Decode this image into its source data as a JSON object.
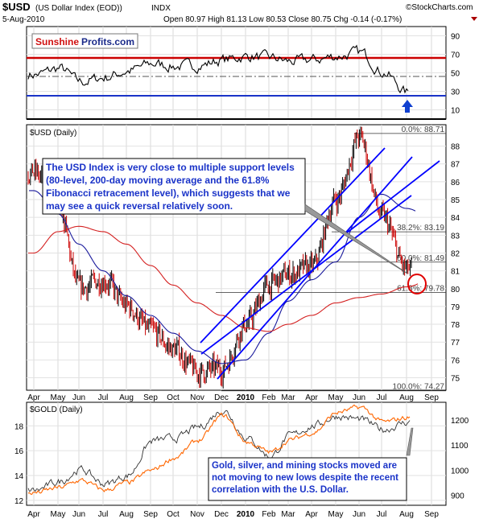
{
  "header": {
    "symbol": "$USD",
    "name": "(US Dollar Index (EOD))",
    "exchange": "INDX",
    "date": "5-Aug-2010",
    "ohlc": "Open 80.97  High 81.13  Low 80.53  Close 80.75  Chg -0.14 (-0.17%)",
    "watermark": "©StockCharts.com",
    "logo_red": "Sunshine",
    "logo_blue": "Profits.com"
  },
  "colors": {
    "annotation": "#1a33c8",
    "up": "#000000",
    "down": "#cc0000",
    "ma50": "#1a1a9c",
    "ma200": "#d42020",
    "gold": "#ff6600",
    "channel": "#0000ff",
    "rsi_upper": "#cc0000",
    "rsi_lower": "#1a33c8"
  },
  "chart_data": [
    {
      "type": "line",
      "title": "",
      "axis_ticks": [
        90,
        70,
        50,
        30,
        10
      ],
      "ylim": [
        0,
        100
      ],
      "reference_lines": [
        70,
        50,
        30
      ],
      "x": [
        "Apr",
        "May",
        "Jun",
        "Jul",
        "Aug",
        "Sep",
        "Oct",
        "Nov",
        "Dec",
        "2010",
        "Feb",
        "Mar",
        "Apr",
        "May",
        "Jun",
        "Jul",
        "Aug"
      ],
      "series": [
        {
          "values": [
            48,
            55,
            40,
            45,
            52,
            60,
            57,
            58,
            64,
            68,
            66,
            62,
            64,
            68,
            72,
            50,
            28
          ]
        }
      ]
    },
    {
      "type": "line",
      "label": "$USD (Daily)",
      "x": [
        "Apr",
        "May",
        "Jun",
        "Jul",
        "Aug",
        "Sep",
        "Oct",
        "Nov",
        "Dec",
        "2010",
        "Feb",
        "Mar",
        "Apr",
        "May",
        "Jun",
        "Jul",
        "Aug",
        "Sep"
      ],
      "y_ticks": [
        75,
        76,
        77,
        78,
        79,
        80,
        81,
        82,
        83,
        84,
        85,
        86,
        87,
        88
      ],
      "ylim": [
        74.3,
        89.2
      ],
      "series": [
        {
          "name": "",
          "values": [
            86.5,
            84.5,
            80.0,
            80.5,
            79.0,
            77.6,
            76.6,
            75.3,
            75.5,
            78.0,
            80.2,
            80.8,
            81.2,
            85.0,
            88.5,
            84.0,
            81.0,
            80.75
          ]
        },
        {
          "name": "",
          "values": [
            85.5,
            84.2,
            82.5,
            81.0,
            79.6,
            78.5,
            77.5,
            76.5,
            75.8,
            76.0,
            77.5,
            79.3,
            80.5,
            81.5,
            84.0,
            85.3,
            84.5,
            84.0
          ]
        },
        {
          "name": "",
          "values": [
            82.0,
            83.2,
            83.5,
            83.2,
            82.5,
            81.3,
            80.2,
            79.2,
            78.5,
            77.8,
            77.6,
            78.0,
            78.5,
            79.2,
            79.5,
            79.7,
            80.1,
            80.5
          ]
        }
      ],
      "fibonacci": [
        {
          "label": "0.0%: 88.71",
          "value": 88.71
        },
        {
          "label": "38.2%: 83.19",
          "value": 83.19
        },
        {
          "label": "50.0%: 81.49",
          "value": 81.49
        },
        {
          "label": "61.8%: 79.78",
          "value": 79.78
        },
        {
          "label": "100.0%: 74.27",
          "value": 74.27
        }
      ],
      "annotation": "The USD Index is very close to multiple support levels (80-level, 200-day moving average and the 61.8% Fibonacci retracement level), which suggests that we may see a quick reversal relatively soon."
    },
    {
      "type": "line",
      "label": "$GOLD (Daily)",
      "x": [
        "Apr",
        "May",
        "Jun",
        "Jul",
        "Aug",
        "Sep",
        "Oct",
        "Nov",
        "Dec",
        "2010",
        "Feb",
        "Mar",
        "Apr",
        "May",
        "Jun",
        "Jul",
        "Aug",
        "Sep"
      ],
      "left_ticks": [
        12,
        14,
        16,
        18
      ],
      "right_ticks": [
        900,
        1000,
        1100,
        1200
      ],
      "series": [
        {
          "name": "",
          "axis": "left",
          "values": [
            12.8,
            13.5,
            14.5,
            13.3,
            14.0,
            16.8,
            17.0,
            17.9,
            19.3,
            17.0,
            15.5,
            17.2,
            18.0,
            18.8,
            18.5,
            17.7,
            18.3,
            18.4
          ]
        },
        {
          "name": "",
          "axis": "right",
          "values": [
            910,
            930,
            960,
            920,
            950,
            1000,
            1050,
            1120,
            1220,
            1110,
            1070,
            1120,
            1150,
            1230,
            1250,
            1190,
            1210,
            1205
          ]
        }
      ],
      "annotation": "Gold, silver, and mining stocks moved are not moving to new lows despite the recent correlation with the U.S. Dollar."
    }
  ]
}
